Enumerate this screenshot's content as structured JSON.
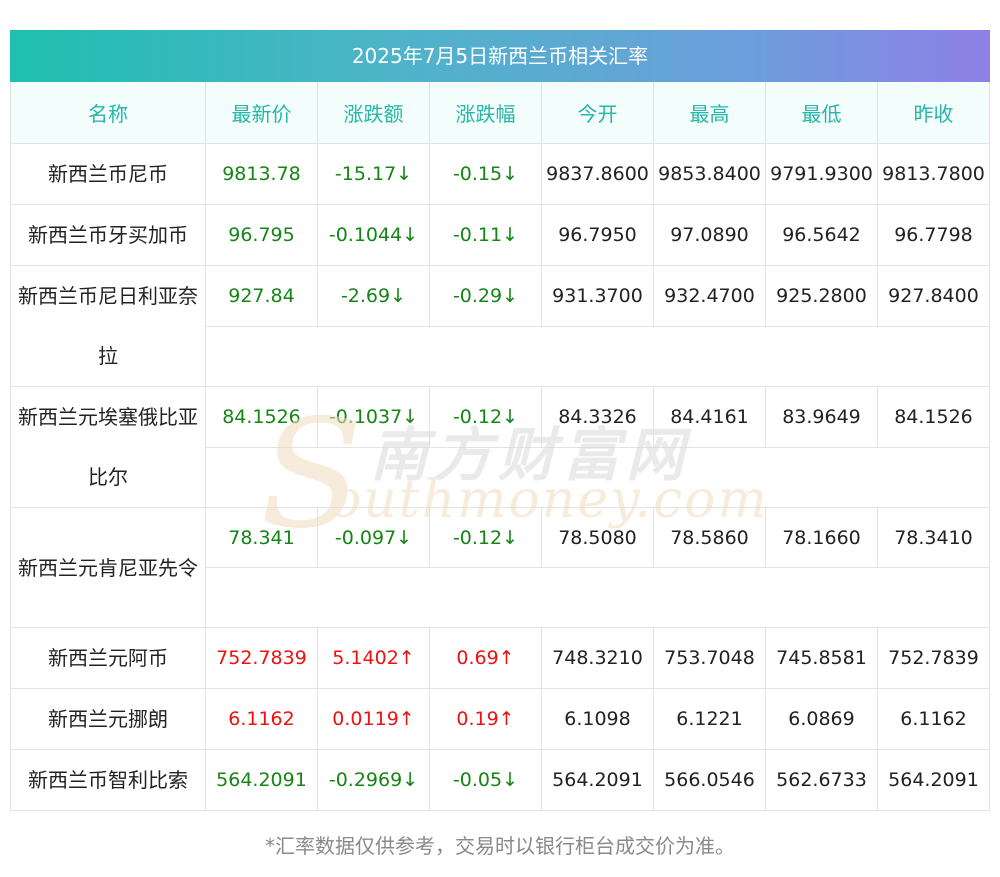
{
  "title": "2025年7月5日新西兰币相关汇率",
  "headers": [
    "名称",
    "最新价",
    "涨跌额",
    "涨跌幅",
    "今开",
    "最高",
    "最低",
    "昨收"
  ],
  "rows": [
    {
      "name": "新西兰币尼币",
      "latest": "9813.78",
      "change": "-15.17↓",
      "pct": "-0.15↓",
      "open": "9837.8600",
      "high": "9853.8400",
      "low": "9791.9300",
      "prev": "9813.7800",
      "dir": "down"
    },
    {
      "name": "新西兰币牙买加币",
      "latest": "96.795",
      "change": "-0.1044↓",
      "pct": "-0.11↓",
      "open": "96.7950",
      "high": "97.0890",
      "low": "96.5642",
      "prev": "96.7798",
      "dir": "down"
    },
    {
      "name": "新西兰币尼日利亚奈拉",
      "latest": "927.84",
      "change": "-2.69↓",
      "pct": "-0.29↓",
      "open": "931.3700",
      "high": "932.4700",
      "low": "925.2800",
      "prev": "927.8400",
      "dir": "down"
    },
    {
      "name": "新西兰元埃塞俄比亚比尔",
      "latest": "84.1526",
      "change": "-0.1037↓",
      "pct": "-0.12↓",
      "open": "84.3326",
      "high": "84.4161",
      "low": "83.9649",
      "prev": "84.1526",
      "dir": "down"
    },
    {
      "name": "新西兰元肯尼亚先令",
      "latest": "78.341",
      "change": "-0.097↓",
      "pct": "-0.12↓",
      "open": "78.5080",
      "high": "78.5860",
      "low": "78.1660",
      "prev": "78.3410",
      "dir": "down"
    },
    {
      "name": "新西兰元阿币",
      "latest": "752.7839",
      "change": "5.1402↑",
      "pct": "0.69↑",
      "open": "748.3210",
      "high": "753.7048",
      "low": "745.8581",
      "prev": "752.7839",
      "dir": "up"
    },
    {
      "name": "新西兰元挪朗",
      "latest": "6.1162",
      "change": "0.0119↑",
      "pct": "0.19↑",
      "open": "6.1098",
      "high": "6.1221",
      "low": "6.0869",
      "prev": "6.1162",
      "dir": "up"
    },
    {
      "name": "新西兰币智利比索",
      "latest": "564.2091",
      "change": "-0.2969↓",
      "pct": "-0.05↓",
      "open": "564.2091",
      "high": "566.0546",
      "low": "562.6733",
      "prev": "564.2091",
      "dir": "down"
    }
  ],
  "watermark": {
    "cn": "南方财富网",
    "en": "outhmoney.com",
    "s": "S"
  },
  "footer": "*汇率数据仅供参考，交易时以银行柜台成交价为准。",
  "colors": {
    "up": "#ee1111",
    "down": "#158515",
    "header_text": "#27b6a8",
    "title_gradient_start": "#1fbfb0",
    "title_gradient_end": "#8f80e6"
  }
}
